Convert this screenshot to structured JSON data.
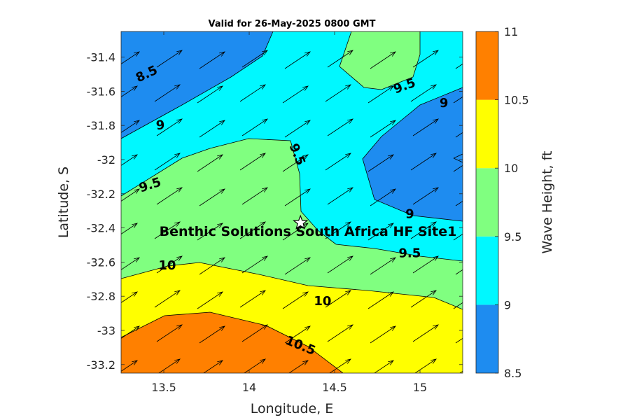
{
  "chart_data": {
    "type": "contour",
    "title": "Valid for 26-May-2025 0800 GMT",
    "xlabel": "Longitude, E",
    "ylabel": "Latitude, S",
    "colorbar_label": "Wave Height, ft",
    "xlim": [
      13.25,
      15.25
    ],
    "ylim": [
      -33.25,
      -31.25
    ],
    "x_ticks": [
      13.5,
      14,
      14.5,
      15
    ],
    "x_tick_labels": [
      "13.5",
      "14",
      "14.5",
      "15"
    ],
    "y_ticks": [
      -31.4,
      -31.6,
      -31.8,
      -32,
      -32.2,
      -32.4,
      -32.6,
      -32.8,
      -33,
      -33.2
    ],
    "y_tick_labels": [
      "-31.4",
      "-31.6",
      "-31.8",
      "-32",
      "-32.2",
      "-32.4",
      "-32.6",
      "-32.8",
      "-33",
      "-33.2"
    ],
    "colorbar_ticks": [
      "8.5",
      "9",
      "9.5",
      "10",
      "10.5",
      "11"
    ],
    "levels": [
      8.5,
      9,
      9.5,
      10,
      10.5,
      11
    ],
    "level_colors": [
      "#1e8cf0",
      "#00f8ff",
      "#80ff80",
      "#ffff00",
      "#ff8000"
    ],
    "site": {
      "name": "Benthic Solutions South Africa HF Site1",
      "lon": 14.3,
      "lat": -32.37
    },
    "contour_labels": [
      {
        "text": "8.5",
        "lon": 13.4,
        "lat": -31.5,
        "angle": -25
      },
      {
        "text": "9",
        "lon": 13.48,
        "lat": -31.8,
        "angle": -5
      },
      {
        "text": "9",
        "lon": 15.14,
        "lat": -31.67,
        "angle": 0
      },
      {
        "text": "9",
        "lon": 14.94,
        "lat": -32.32,
        "angle": 0
      },
      {
        "text": "9.5",
        "lon": 14.91,
        "lat": -31.57,
        "angle": -20
      },
      {
        "text": "9.5",
        "lon": 14.28,
        "lat": -31.97,
        "angle": 68
      },
      {
        "text": "9.5",
        "lon": 13.42,
        "lat": -32.15,
        "angle": -18
      },
      {
        "text": "9.5",
        "lon": 14.94,
        "lat": -32.55,
        "angle": 0
      },
      {
        "text": "10",
        "lon": 13.52,
        "lat": -32.62,
        "angle": 0
      },
      {
        "text": "10",
        "lon": 14.43,
        "lat": -32.83,
        "angle": 0
      },
      {
        "text": "10.5",
        "lon": 14.3,
        "lat": -33.09,
        "angle": 22
      }
    ],
    "wave_direction": "arrows point to the north-east"
  }
}
